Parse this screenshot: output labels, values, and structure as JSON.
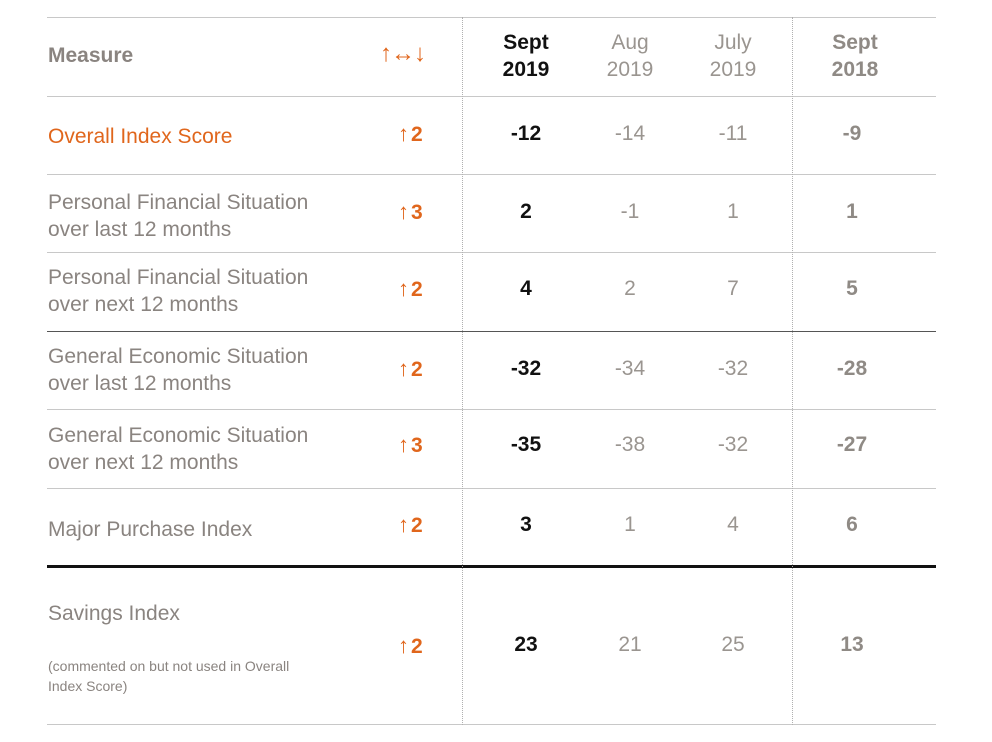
{
  "header": {
    "measure": "Measure",
    "change_arrows": "↑↔↓",
    "columns": [
      {
        "line1": "Sept",
        "line2": "2019"
      },
      {
        "line1": "Aug",
        "line2": "2019"
      },
      {
        "line1": "July",
        "line2": "2019"
      },
      {
        "line1": "Sept",
        "line2": "2018"
      }
    ]
  },
  "change_icon": "up-arrow-icon",
  "accent_color": "#e0661c",
  "rows": [
    {
      "label": "Overall Index Score",
      "label2": "",
      "change": "2",
      "values": [
        "-12",
        "-14",
        "-11",
        "-9"
      ]
    },
    {
      "label": "Personal Financial Situation",
      "label2": "over last 12 months",
      "change": "3",
      "values": [
        "2",
        "-1",
        "1",
        "1"
      ]
    },
    {
      "label": "Personal Financial Situation",
      "label2": "over next 12 months",
      "change": "2",
      "values": [
        "4",
        "2",
        "7",
        "5"
      ]
    },
    {
      "label": "General Economic Situation",
      "label2": "over last 12 months",
      "change": "2",
      "values": [
        "-32",
        "-34",
        "-32",
        "-28"
      ]
    },
    {
      "label": "General Economic Situation",
      "label2": "over next 12 months",
      "change": "3",
      "values": [
        "-35",
        "-38",
        "-32",
        "-27"
      ]
    },
    {
      "label": "Major Purchase Index",
      "label2": "",
      "change": "2",
      "values": [
        "3",
        "1",
        "4",
        "6"
      ]
    },
    {
      "label": "Savings Index",
      "note1": "(commented on but not used in Overall",
      "note2": "Index Score)",
      "change": "2",
      "values": [
        "23",
        "21",
        "25",
        "13"
      ]
    }
  ]
}
